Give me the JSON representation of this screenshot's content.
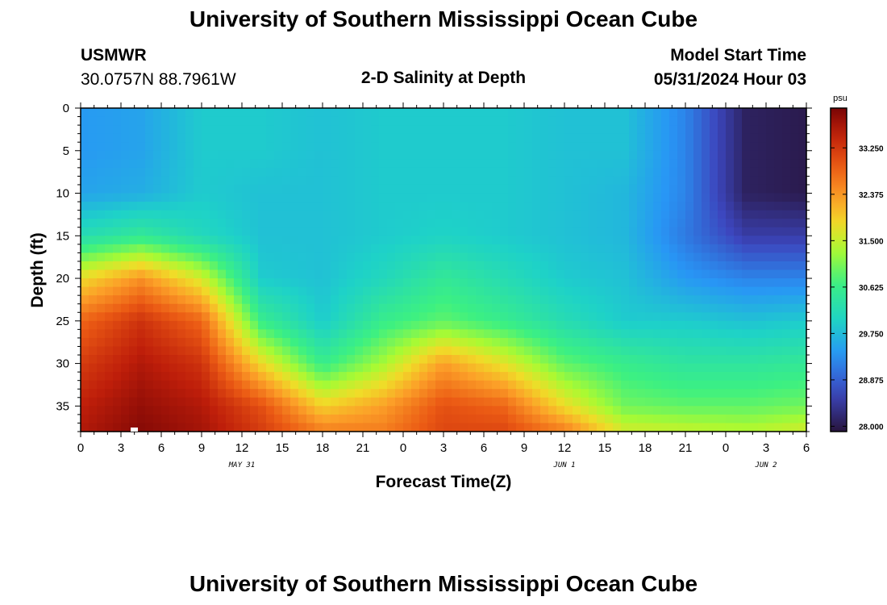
{
  "header": {
    "title": "University of Southern Mississippi Ocean Cube",
    "station": "USMWR",
    "coords": "30.0757N  88.7961W",
    "subtitle": "2-D Salinity at Depth",
    "model_label": "Model Start Time",
    "model_time": "05/31/2024 Hour 03"
  },
  "footer": {
    "title": "University of Southern Mississippi Ocean Cube"
  },
  "chart_data": {
    "type": "heatmap",
    "title": "2-D Salinity at Depth",
    "xlabel": "Forecast Time(Z)",
    "ylabel": "Depth (ft)",
    "x_tick_labels": [
      "0",
      "3",
      "6",
      "9",
      "12",
      "15",
      "18",
      "21",
      "0",
      "3",
      "6",
      "9",
      "12",
      "15",
      "18",
      "21",
      "0",
      "3",
      "6"
    ],
    "x_hours": [
      0,
      54
    ],
    "x_date_labels": [
      {
        "label": "MAY 31",
        "hour": 12
      },
      {
        "label": "JUN 1",
        "hour": 36
      },
      {
        "label": "JUN 2",
        "hour": 51
      }
    ],
    "y_ticks": [
      0,
      5,
      10,
      15,
      20,
      25,
      30,
      35
    ],
    "ylim": [
      0,
      38
    ],
    "y_inverted": true,
    "colorbar": {
      "unit": "psu",
      "ticks": [
        "33.250",
        "32.375",
        "31.500",
        "30.625",
        "29.750",
        "28.875",
        "28.000"
      ],
      "range": [
        27.9,
        34.0
      ],
      "colormap": "turbo"
    },
    "approx_salinity_grid": {
      "note_units": "psu",
      "hours": [
        0,
        4.5,
        9,
        13.5,
        18,
        22.5,
        27,
        31.5,
        36,
        40.5,
        45,
        49.5,
        54
      ],
      "depths_ft": [
        0,
        5,
        10,
        15,
        20,
        25,
        30,
        35,
        38
      ],
      "values": [
        [
          29.4,
          29.5,
          29.9,
          29.9,
          29.8,
          29.9,
          29.9,
          29.9,
          29.8,
          29.8,
          29.2,
          28.1,
          28.0
        ],
        [
          29.4,
          29.5,
          29.9,
          29.9,
          29.8,
          29.9,
          29.9,
          29.9,
          29.8,
          29.8,
          29.2,
          28.1,
          28.0
        ],
        [
          29.5,
          29.6,
          29.9,
          29.8,
          29.8,
          29.9,
          29.9,
          29.9,
          29.8,
          29.7,
          29.2,
          28.1,
          28.0
        ],
        [
          30.2,
          30.5,
          30.1,
          29.8,
          29.8,
          29.9,
          30.0,
          29.9,
          29.8,
          29.7,
          29.1,
          28.5,
          28.5
        ],
        [
          31.8,
          32.4,
          31.6,
          29.9,
          29.8,
          30.1,
          30.5,
          30.2,
          29.9,
          29.8,
          29.4,
          29.2,
          29.2
        ],
        [
          32.8,
          33.3,
          32.8,
          30.6,
          29.9,
          30.6,
          30.9,
          30.6,
          30.2,
          29.9,
          29.9,
          29.8,
          29.9
        ],
        [
          33.2,
          33.6,
          33.3,
          31.8,
          30.6,
          31.3,
          32.3,
          31.7,
          30.9,
          30.6,
          30.4,
          30.4,
          30.5
        ],
        [
          33.5,
          33.8,
          33.6,
          33.0,
          31.9,
          32.3,
          33.0,
          32.8,
          31.8,
          31.0,
          30.9,
          30.9,
          31.0
        ],
        [
          33.6,
          33.9,
          33.7,
          33.2,
          32.6,
          32.6,
          33.1,
          33.1,
          32.6,
          31.6,
          31.5,
          31.4,
          31.6
        ]
      ]
    }
  }
}
